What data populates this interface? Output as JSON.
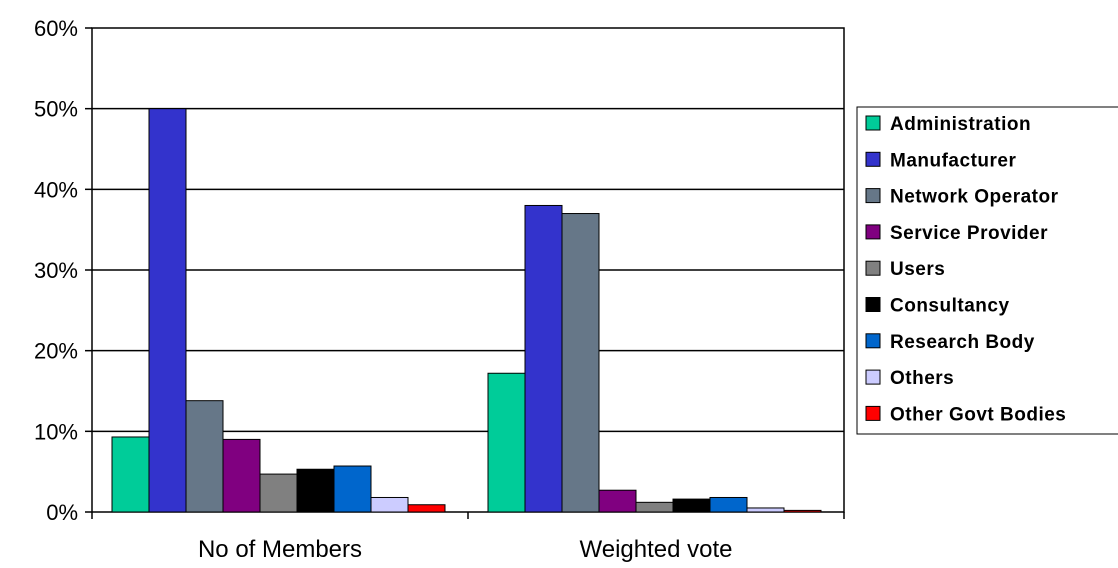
{
  "chart_data": {
    "type": "bar",
    "categories": [
      "No of Members",
      "Weighted vote"
    ],
    "series": [
      {
        "name": "Administration",
        "color": "#00cc99",
        "values": [
          9.3,
          17.2
        ]
      },
      {
        "name": "Manufacturer",
        "color": "#3333cc",
        "values": [
          50.0,
          38.0
        ]
      },
      {
        "name": "Network Operator",
        "color": "#667788",
        "values": [
          13.8,
          37.0
        ]
      },
      {
        "name": "Service Provider",
        "color": "#800080",
        "values": [
          9.0,
          2.7
        ]
      },
      {
        "name": "Users",
        "color": "#808080",
        "values": [
          4.7,
          1.2
        ]
      },
      {
        "name": "Consultancy",
        "color": "#000000",
        "values": [
          5.3,
          1.6
        ]
      },
      {
        "name": "Research Body",
        "color": "#0066cc",
        "values": [
          5.7,
          1.8
        ]
      },
      {
        "name": "Others",
        "color": "#ccccff",
        "values": [
          1.8,
          0.5
        ]
      },
      {
        "name": "Other Govt Bodies",
        "color": "#ff0000",
        "values": [
          0.9,
          0.2
        ]
      }
    ],
    "yticks": [
      "0%",
      "10%",
      "20%",
      "30%",
      "40%",
      "50%",
      "60%"
    ],
    "ylim": [
      0,
      60
    ],
    "grid": true,
    "legend_position": "right"
  }
}
